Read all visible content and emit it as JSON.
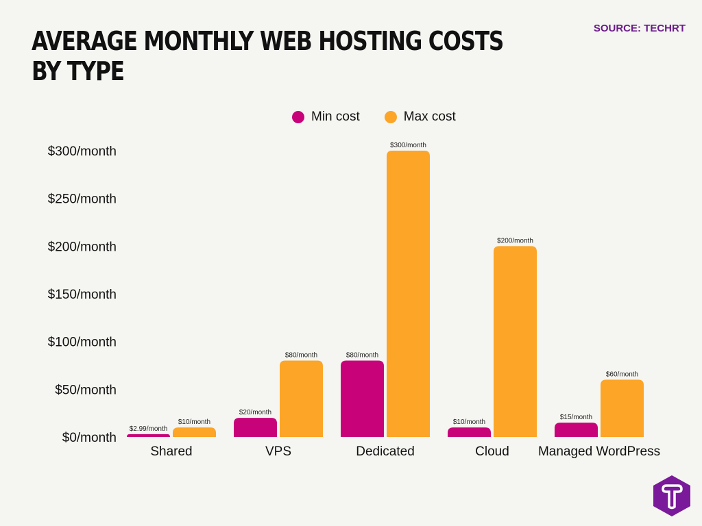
{
  "title": "AVERAGE MONTHLY WEB HOSTING COSTS BY TYPE",
  "source": "SOURCE: TECHRT",
  "logo_text": "T",
  "chart_data": {
    "type": "bar",
    "title": "AVERAGE MONTHLY WEB HOSTING COSTS BY TYPE",
    "categories": [
      "Shared",
      "VPS",
      "Dedicated",
      "Cloud",
      "Managed WordPress"
    ],
    "series": [
      {
        "name": "Min cost",
        "color": "#c8037a",
        "values": [
          2.99,
          20,
          80,
          10,
          15
        ],
        "labels": [
          "$2.99/month",
          "$20/month",
          "$80/month",
          "$10/month",
          "$15/month"
        ]
      },
      {
        "name": "Max cost",
        "color": "#fca527",
        "values": [
          10,
          80,
          300,
          200,
          60
        ],
        "labels": [
          "$10/month",
          "$80/month",
          "$300/month",
          "$200/month",
          "$60/month"
        ]
      }
    ],
    "yticks": [
      "$0/month",
      "$50/month",
      "$100/month",
      "$150/month",
      "$200/month",
      "$250/month",
      "$300/month"
    ],
    "ylim": [
      0,
      300
    ],
    "grid": false,
    "legend": "top-center"
  }
}
